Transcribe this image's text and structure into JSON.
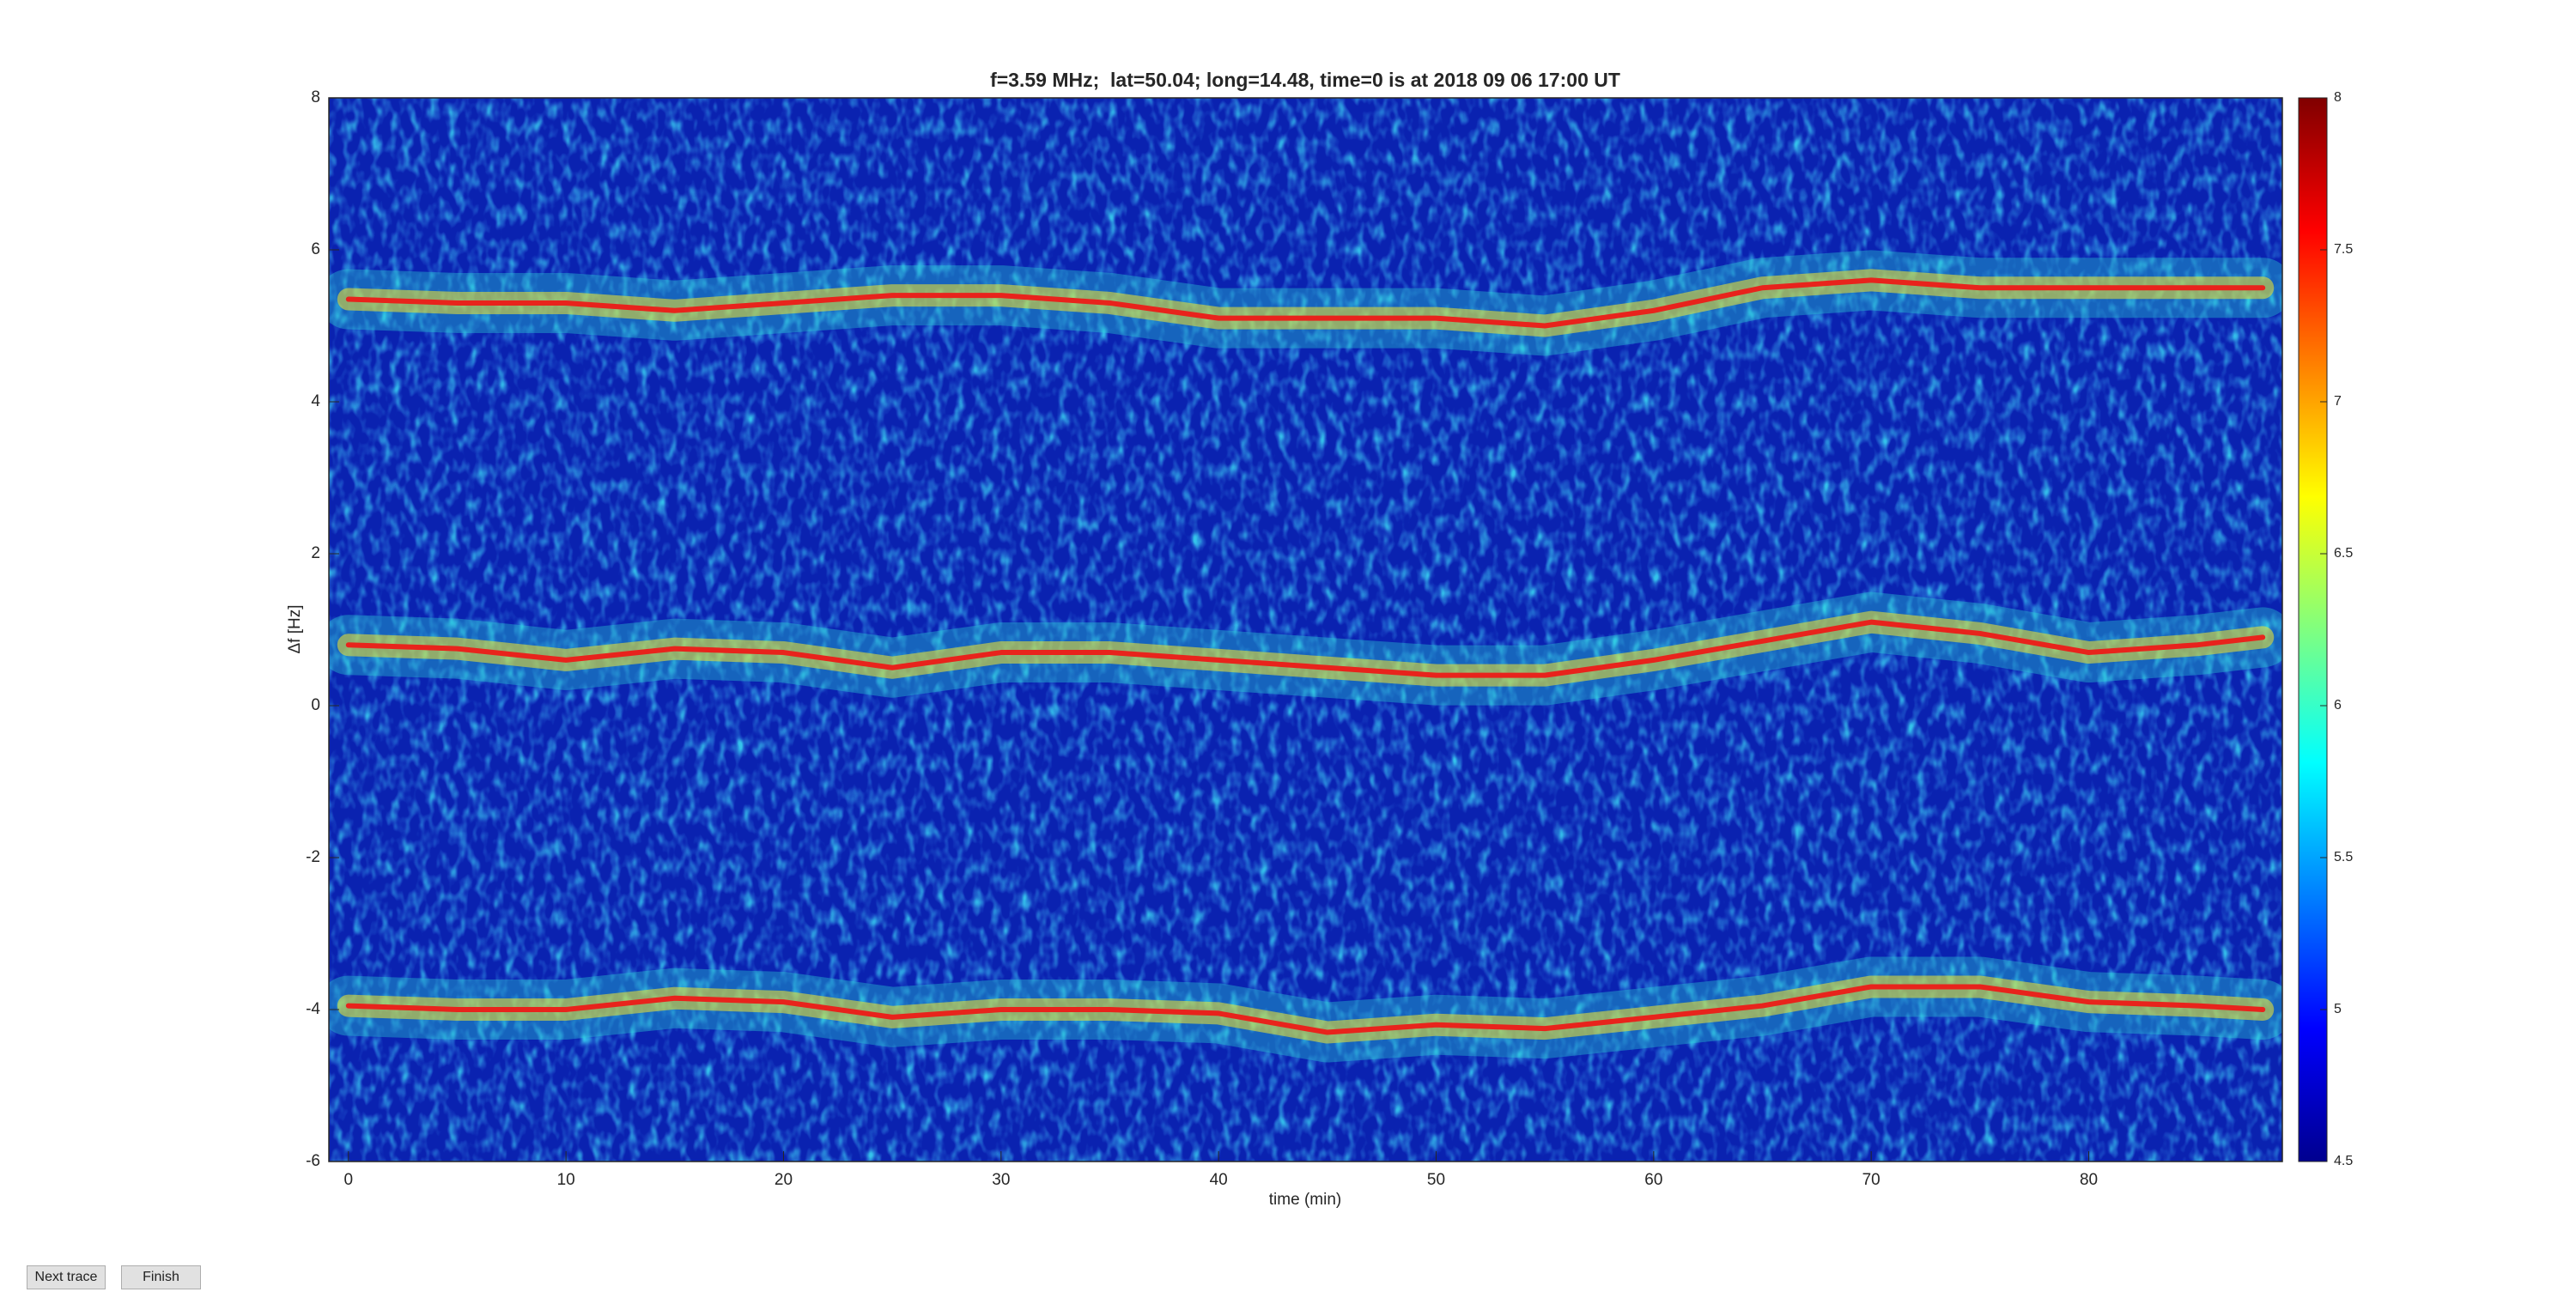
{
  "chart_data": {
    "type": "line",
    "title": "f=3.59 MHz;  lat=50.04; long=14.48, time=0 is at 2018 09 06 17:00 UT",
    "xlabel": "time (min)",
    "ylabel": "Δf [Hz]",
    "xlim": [
      -0.9,
      88.9
    ],
    "ylim": [
      -6,
      8
    ],
    "xticks": [
      0,
      10,
      20,
      30,
      40,
      50,
      60,
      70,
      80
    ],
    "yticks": [
      -6,
      -4,
      -2,
      0,
      2,
      4,
      6,
      8
    ],
    "x": [
      0,
      5,
      10,
      15,
      20,
      25,
      30,
      35,
      40,
      45,
      50,
      55,
      60,
      65,
      70,
      75,
      80,
      85,
      88
    ],
    "series": [
      {
        "color": "#e8231c",
        "values": [
          5.35,
          5.3,
          5.3,
          5.2,
          5.3,
          5.4,
          5.4,
          5.3,
          5.1,
          5.1,
          5.1,
          5.0,
          5.2,
          5.5,
          5.6,
          5.5,
          5.5,
          5.5,
          5.5
        ]
      },
      {
        "color": "#e8231c",
        "values": [
          0.8,
          0.75,
          0.6,
          0.75,
          0.7,
          0.5,
          0.7,
          0.7,
          0.6,
          0.5,
          0.4,
          0.4,
          0.6,
          0.85,
          1.1,
          0.95,
          0.7,
          0.8,
          0.9
        ]
      },
      {
        "color": "#e8231c",
        "values": [
          -3.95,
          -4.0,
          -4.0,
          -3.85,
          -3.9,
          -4.1,
          -4.0,
          -4.0,
          -4.05,
          -4.3,
          -4.2,
          -4.25,
          -4.1,
          -3.95,
          -3.7,
          -3.7,
          -3.9,
          -3.95,
          -4.0
        ]
      }
    ],
    "colorbar": {
      "lim": [
        4.5,
        8
      ],
      "ticks": [
        4.5,
        5,
        5.5,
        6,
        6.5,
        7,
        7.5,
        8
      ]
    }
  },
  "buttons": [
    "Next trace",
    "Finish"
  ]
}
